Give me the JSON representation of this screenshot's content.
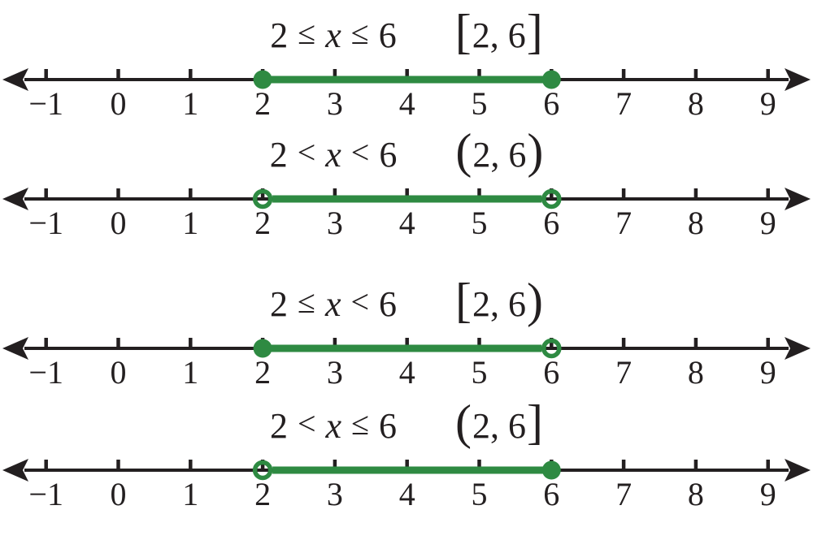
{
  "colors": {
    "ink": "#231f20",
    "green": "#2e8a42",
    "paper": "#ffffff"
  },
  "number_line": {
    "min": -1,
    "max": 9,
    "tick_step": 1,
    "tick_labels": [
      "−1",
      "0",
      "1",
      "2",
      "3",
      "4",
      "5",
      "6",
      "7",
      "8",
      "9"
    ]
  },
  "chart_data": [
    {
      "type": "number_line_interval",
      "inequality": {
        "left": "2",
        "rel1": "≤",
        "variable": "x",
        "rel2": "≤",
        "right": "6"
      },
      "interval": {
        "open": "[",
        "body": "2, 6",
        "close": "]"
      },
      "segment": {
        "start": 2,
        "end": 6,
        "start_closed": true,
        "end_closed": true
      }
    },
    {
      "type": "number_line_interval",
      "inequality": {
        "left": "2",
        "rel1": "<",
        "variable": "x",
        "rel2": "<",
        "right": "6"
      },
      "interval": {
        "open": "(",
        "body": "2, 6",
        "close": ")"
      },
      "segment": {
        "start": 2,
        "end": 6,
        "start_closed": false,
        "end_closed": false
      }
    },
    {
      "type": "number_line_interval",
      "inequality": {
        "left": "2",
        "rel1": "≤",
        "variable": "x",
        "rel2": "<",
        "right": "6"
      },
      "interval": {
        "open": "[",
        "body": "2, 6",
        "close": ")"
      },
      "segment": {
        "start": 2,
        "end": 6,
        "start_closed": true,
        "end_closed": false
      }
    },
    {
      "type": "number_line_interval",
      "inequality": {
        "left": "2",
        "rel1": "<",
        "variable": "x",
        "rel2": "≤",
        "right": "6"
      },
      "interval": {
        "open": "(",
        "body": "2, 6",
        "close": "]"
      },
      "segment": {
        "start": 2,
        "end": 6,
        "start_closed": false,
        "end_closed": true
      }
    }
  ]
}
